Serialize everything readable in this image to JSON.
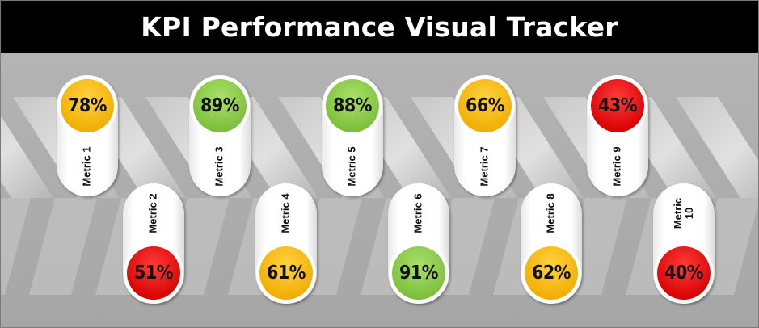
{
  "title": "KPI Performance Visual Tracker",
  "colors": {
    "green": "#8fd14f",
    "amber": "#ffc000",
    "red": "#ff0000",
    "title_background": "#000000",
    "background": "#a6a6a6"
  },
  "chart_data": {
    "type": "kpi-pill-tracker",
    "title": "KPI Performance Visual Tracker",
    "categories": [
      "Metric 1",
      "Metric 2",
      "Metric 3",
      "Metric 4",
      "Metric 5",
      "Metric 6",
      "Metric 7",
      "Metric 8",
      "Metric 9",
      "Metric 10"
    ],
    "labels": [
      "Metric 1",
      "Metric 2",
      "Metric 3",
      "Metric 4",
      "Metric 5",
      "Metric 6",
      "Metric 7",
      "Metric 8",
      "Metric 9",
      "Metric\n10"
    ],
    "values": [
      78,
      51,
      89,
      61,
      88,
      91,
      66,
      62,
      43,
      40
    ],
    "value_labels": [
      "78%",
      "51%",
      "89%",
      "61%",
      "88%",
      "91%",
      "66%",
      "62%",
      "43%",
      "40%"
    ],
    "status_colors": [
      "amber",
      "red",
      "green",
      "amber",
      "green",
      "green",
      "amber",
      "amber",
      "red",
      "red"
    ]
  }
}
